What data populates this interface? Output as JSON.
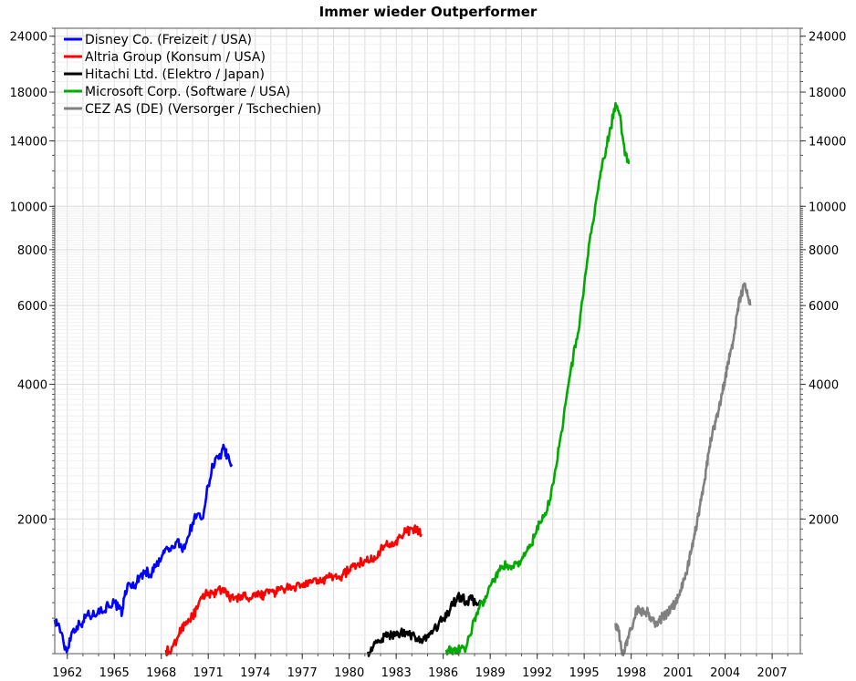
{
  "chart_data": {
    "type": "line",
    "title": "Immer wieder Outperformer",
    "xlabel": "",
    "ylabel": "",
    "y_scale": "log",
    "xlim": [
      1961.2,
      2008.8
    ],
    "ylim": [
      1000,
      25000
    ],
    "x_ticks": [
      "1962",
      "1965",
      "1968",
      "1971",
      "1974",
      "1977",
      "1980",
      "1983",
      "1986",
      "1989",
      "1992",
      "1995",
      "1998",
      "2001",
      "2004",
      "2007"
    ],
    "y_ticks": [
      "2000",
      "4000",
      "6000",
      "8000",
      "10000",
      "14000",
      "18000",
      "24000"
    ],
    "y_tick_values": [
      2000,
      4000,
      6000,
      8000,
      10000,
      14000,
      18000,
      24000
    ],
    "grid": true,
    "legend_position": "top-left",
    "series": [
      {
        "name": "Disney Co. (Freizeit / USA)",
        "color": "#0000ff",
        "points": [
          [
            1961.2,
            1190
          ],
          [
            1961.5,
            1150
          ],
          [
            1961.8,
            1040
          ],
          [
            1962.0,
            1020
          ],
          [
            1962.3,
            1120
          ],
          [
            1962.6,
            1150
          ],
          [
            1963.0,
            1180
          ],
          [
            1963.3,
            1230
          ],
          [
            1963.6,
            1210
          ],
          [
            1964.0,
            1260
          ],
          [
            1964.3,
            1240
          ],
          [
            1964.6,
            1290
          ],
          [
            1965.0,
            1300
          ],
          [
            1965.3,
            1260
          ],
          [
            1965.5,
            1230
          ],
          [
            1965.7,
            1380
          ],
          [
            1966.0,
            1430
          ],
          [
            1966.3,
            1420
          ],
          [
            1966.6,
            1480
          ],
          [
            1967.0,
            1530
          ],
          [
            1967.3,
            1500
          ],
          [
            1967.6,
            1560
          ],
          [
            1968.0,
            1630
          ],
          [
            1968.3,
            1720
          ],
          [
            1968.6,
            1700
          ],
          [
            1969.0,
            1780
          ],
          [
            1969.3,
            1720
          ],
          [
            1969.6,
            1770
          ],
          [
            1970.0,
            1960
          ],
          [
            1970.3,
            2050
          ],
          [
            1970.6,
            2000
          ],
          [
            1971.0,
            2380
          ],
          [
            1971.3,
            2650
          ],
          [
            1971.6,
            2750
          ],
          [
            1971.8,
            2730
          ],
          [
            1972.0,
            2900
          ],
          [
            1972.2,
            2750
          ],
          [
            1972.5,
            2650
          ]
        ]
      },
      {
        "name": "Altria Group (Konsum / USA)",
        "color": "#ff0000",
        "points": [
          [
            1968.3,
            1020
          ],
          [
            1968.6,
            1000
          ],
          [
            1969.0,
            1080
          ],
          [
            1969.3,
            1140
          ],
          [
            1969.6,
            1180
          ],
          [
            1970.0,
            1210
          ],
          [
            1970.3,
            1260
          ],
          [
            1970.6,
            1330
          ],
          [
            1971.0,
            1370
          ],
          [
            1971.3,
            1360
          ],
          [
            1971.6,
            1390
          ],
          [
            1972.0,
            1370
          ],
          [
            1972.3,
            1350
          ],
          [
            1972.6,
            1320
          ],
          [
            1973.0,
            1340
          ],
          [
            1973.3,
            1350
          ],
          [
            1973.6,
            1310
          ],
          [
            1974.0,
            1340
          ],
          [
            1974.3,
            1360
          ],
          [
            1974.6,
            1350
          ],
          [
            1975.0,
            1380
          ],
          [
            1975.3,
            1370
          ],
          [
            1975.6,
            1390
          ],
          [
            1976.0,
            1400
          ],
          [
            1976.3,
            1390
          ],
          [
            1976.6,
            1410
          ],
          [
            1977.0,
            1430
          ],
          [
            1977.3,
            1420
          ],
          [
            1977.6,
            1440
          ],
          [
            1978.0,
            1460
          ],
          [
            1978.3,
            1450
          ],
          [
            1978.6,
            1480
          ],
          [
            1979.0,
            1490
          ],
          [
            1979.3,
            1480
          ],
          [
            1979.6,
            1500
          ],
          [
            1980.0,
            1540
          ],
          [
            1980.3,
            1570
          ],
          [
            1980.6,
            1590
          ],
          [
            1981.0,
            1620
          ],
          [
            1981.3,
            1610
          ],
          [
            1981.6,
            1650
          ],
          [
            1982.0,
            1700
          ],
          [
            1982.3,
            1750
          ],
          [
            1982.6,
            1760
          ],
          [
            1983.0,
            1790
          ],
          [
            1983.3,
            1820
          ],
          [
            1983.6,
            1870
          ],
          [
            1984.0,
            1900
          ],
          [
            1984.3,
            1880
          ],
          [
            1984.6,
            1850
          ]
        ]
      },
      {
        "name": "Hitachi Ltd. (Elektro / Japan)",
        "color": "#000000",
        "points": [
          [
            1981.2,
            1010
          ],
          [
            1981.5,
            1030
          ],
          [
            1981.8,
            1060
          ],
          [
            1982.1,
            1080
          ],
          [
            1982.4,
            1090
          ],
          [
            1982.7,
            1110
          ],
          [
            1983.0,
            1100
          ],
          [
            1983.3,
            1120
          ],
          [
            1983.6,
            1110
          ],
          [
            1983.9,
            1100
          ],
          [
            1984.2,
            1090
          ],
          [
            1984.5,
            1060
          ],
          [
            1984.8,
            1080
          ],
          [
            1985.1,
            1110
          ],
          [
            1985.4,
            1130
          ],
          [
            1985.7,
            1160
          ],
          [
            1986.0,
            1200
          ],
          [
            1986.3,
            1240
          ],
          [
            1986.6,
            1280
          ],
          [
            1986.9,
            1340
          ],
          [
            1987.2,
            1330
          ],
          [
            1987.5,
            1310
          ],
          [
            1987.8,
            1320
          ],
          [
            1988.1,
            1300
          ],
          [
            1988.4,
            1290
          ]
        ]
      },
      {
        "name": "Microsoft Corp. (Software / USA)",
        "color": "#00aa00",
        "points": [
          [
            1986.2,
            1020
          ],
          [
            1986.5,
            1030
          ],
          [
            1986.8,
            1000
          ],
          [
            1987.1,
            1030
          ],
          [
            1987.4,
            1010
          ],
          [
            1987.7,
            1100
          ],
          [
            1988.0,
            1200
          ],
          [
            1988.3,
            1260
          ],
          [
            1988.6,
            1320
          ],
          [
            1988.9,
            1400
          ],
          [
            1989.2,
            1450
          ],
          [
            1989.5,
            1530
          ],
          [
            1989.8,
            1560
          ],
          [
            1990.1,
            1580
          ],
          [
            1990.4,
            1570
          ],
          [
            1990.7,
            1590
          ],
          [
            1991.0,
            1620
          ],
          [
            1991.3,
            1690
          ],
          [
            1991.6,
            1750
          ],
          [
            1991.9,
            1850
          ],
          [
            1992.2,
            1970
          ],
          [
            1992.5,
            2060
          ],
          [
            1992.8,
            2200
          ],
          [
            1993.1,
            2500
          ],
          [
            1993.4,
            2900
          ],
          [
            1993.7,
            3400
          ],
          [
            1994.0,
            4000
          ],
          [
            1994.3,
            4600
          ],
          [
            1994.6,
            5200
          ],
          [
            1994.9,
            6200
          ],
          [
            1995.2,
            7600
          ],
          [
            1995.5,
            9000
          ],
          [
            1995.8,
            10500
          ],
          [
            1996.1,
            12000
          ],
          [
            1996.4,
            13500
          ],
          [
            1996.7,
            15000
          ],
          [
            1997.0,
            17000
          ],
          [
            1997.3,
            16000
          ],
          [
            1997.6,
            13000
          ],
          [
            1997.9,
            12500
          ]
        ]
      },
      {
        "name": "CEZ AS (DE) (Versorger / Tschechien)",
        "color": "#808080",
        "points": [
          [
            1997.0,
            1170
          ],
          [
            1997.2,
            1120
          ],
          [
            1997.4,
            1010
          ],
          [
            1997.6,
            1020
          ],
          [
            1997.8,
            1090
          ],
          [
            1998.0,
            1140
          ],
          [
            1998.2,
            1200
          ],
          [
            1998.4,
            1260
          ],
          [
            1998.6,
            1230
          ],
          [
            1998.8,
            1250
          ],
          [
            1999.0,
            1240
          ],
          [
            1999.2,
            1210
          ],
          [
            1999.4,
            1190
          ],
          [
            1999.6,
            1160
          ],
          [
            1999.8,
            1180
          ],
          [
            2000.0,
            1210
          ],
          [
            2000.2,
            1220
          ],
          [
            2000.4,
            1240
          ],
          [
            2000.6,
            1270
          ],
          [
            2000.8,
            1290
          ],
          [
            2001.0,
            1330
          ],
          [
            2001.2,
            1390
          ],
          [
            2001.4,
            1470
          ],
          [
            2001.6,
            1560
          ],
          [
            2001.8,
            1670
          ],
          [
            2002.0,
            1800
          ],
          [
            2002.2,
            1950
          ],
          [
            2002.4,
            2150
          ],
          [
            2002.6,
            2350
          ],
          [
            2002.8,
            2600
          ],
          [
            2003.0,
            2900
          ],
          [
            2003.2,
            3150
          ],
          [
            2003.4,
            3300
          ],
          [
            2003.6,
            3500
          ],
          [
            2003.8,
            3800
          ],
          [
            2004.0,
            4100
          ],
          [
            2004.2,
            4500
          ],
          [
            2004.4,
            4800
          ],
          [
            2004.6,
            5200
          ],
          [
            2004.8,
            5900
          ],
          [
            2005.0,
            6300
          ],
          [
            2005.2,
            6700
          ],
          [
            2005.4,
            6500
          ],
          [
            2005.6,
            6000
          ]
        ]
      }
    ]
  }
}
